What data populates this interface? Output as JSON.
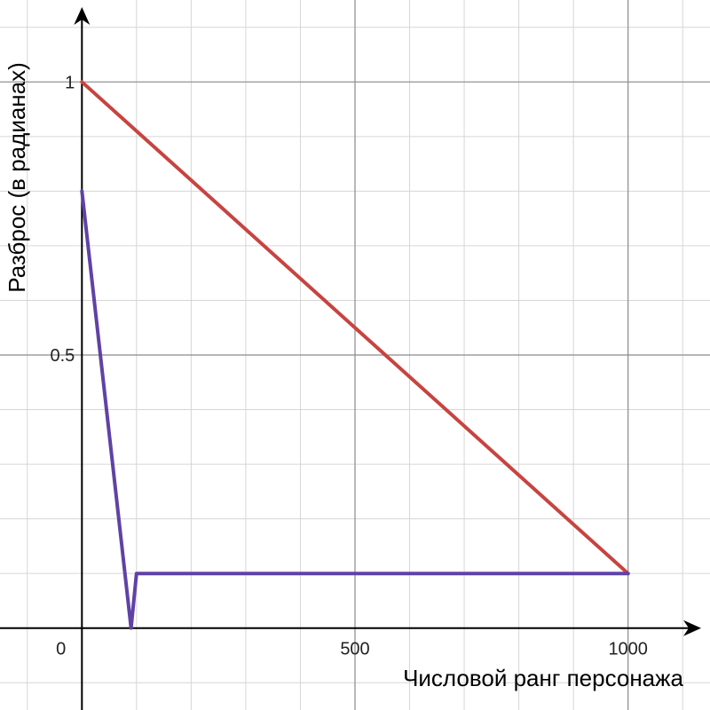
{
  "chart_data": {
    "type": "line",
    "xlabel": "Числовой ранг персонажа",
    "ylabel": "Разброс (в радианах)",
    "xlim": [
      -150,
      1150
    ],
    "ylim": [
      -0.15,
      1.15
    ],
    "grid": true,
    "minor_step": {
      "x": 100,
      "y": 0.1
    },
    "x_ticks": [
      {
        "value": 0,
        "label": "0"
      },
      {
        "value": 500,
        "label": "500"
      },
      {
        "value": 1000,
        "label": "1000"
      }
    ],
    "y_ticks": [
      {
        "value": 0.5,
        "label": "0.5"
      },
      {
        "value": 1,
        "label": "1"
      }
    ],
    "series": [
      {
        "color": "#c74440",
        "points": [
          [
            0,
            1.0
          ],
          [
            1000,
            0.1
          ]
        ]
      },
      {
        "color": "#6042a6",
        "points": [
          [
            0,
            0.8
          ],
          [
            90,
            0.0
          ],
          [
            100,
            0.1
          ],
          [
            1000,
            0.1
          ]
        ]
      }
    ]
  }
}
